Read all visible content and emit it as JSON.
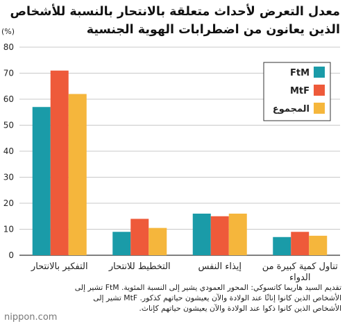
{
  "chart_data": {
    "type": "bar",
    "title": "معدل التعرض لأحداث متعلقة بالانتحار بالنسبة للأشخاص الذين يعانون من اضطرابات الهوية الجنسية",
    "ylabel": "(%)",
    "ylim": [
      0,
      80
    ],
    "yticks": [
      0,
      10,
      20,
      30,
      40,
      50,
      60,
      70,
      80
    ],
    "grid": true,
    "legend_position": "top-right",
    "categories": [
      "التفكير بالانتحار",
      "التخطيط للانتحار",
      "إيذاء النفس",
      "تناول كمية كبيرة من الدواء"
    ],
    "series": [
      {
        "name": "FtM",
        "color": "#1a9ba8",
        "values": [
          57,
          9,
          16,
          7
        ]
      },
      {
        "name": "MtF",
        "color": "#ee5a3a",
        "values": [
          71,
          14,
          15,
          9
        ]
      },
      {
        "name": "المجموع",
        "color": "#f5b63c",
        "values": [
          62,
          10.5,
          16,
          7.5
        ]
      }
    ]
  },
  "caption": "تقديم السيد هاريما كاتسوكي: المحور العمودي يشير إلى النسبة المئوية. FtM تشير إلى الأشخاص الذين كانوا إناثًا عند الولادة والآن يعيشون حياتهم كذكور. MtF تشير إلى الأشخاص الذين كانوا ذكوا عند الولادة والآن يعيشون حياتهم كإناث.",
  "brand": "nippon.com"
}
